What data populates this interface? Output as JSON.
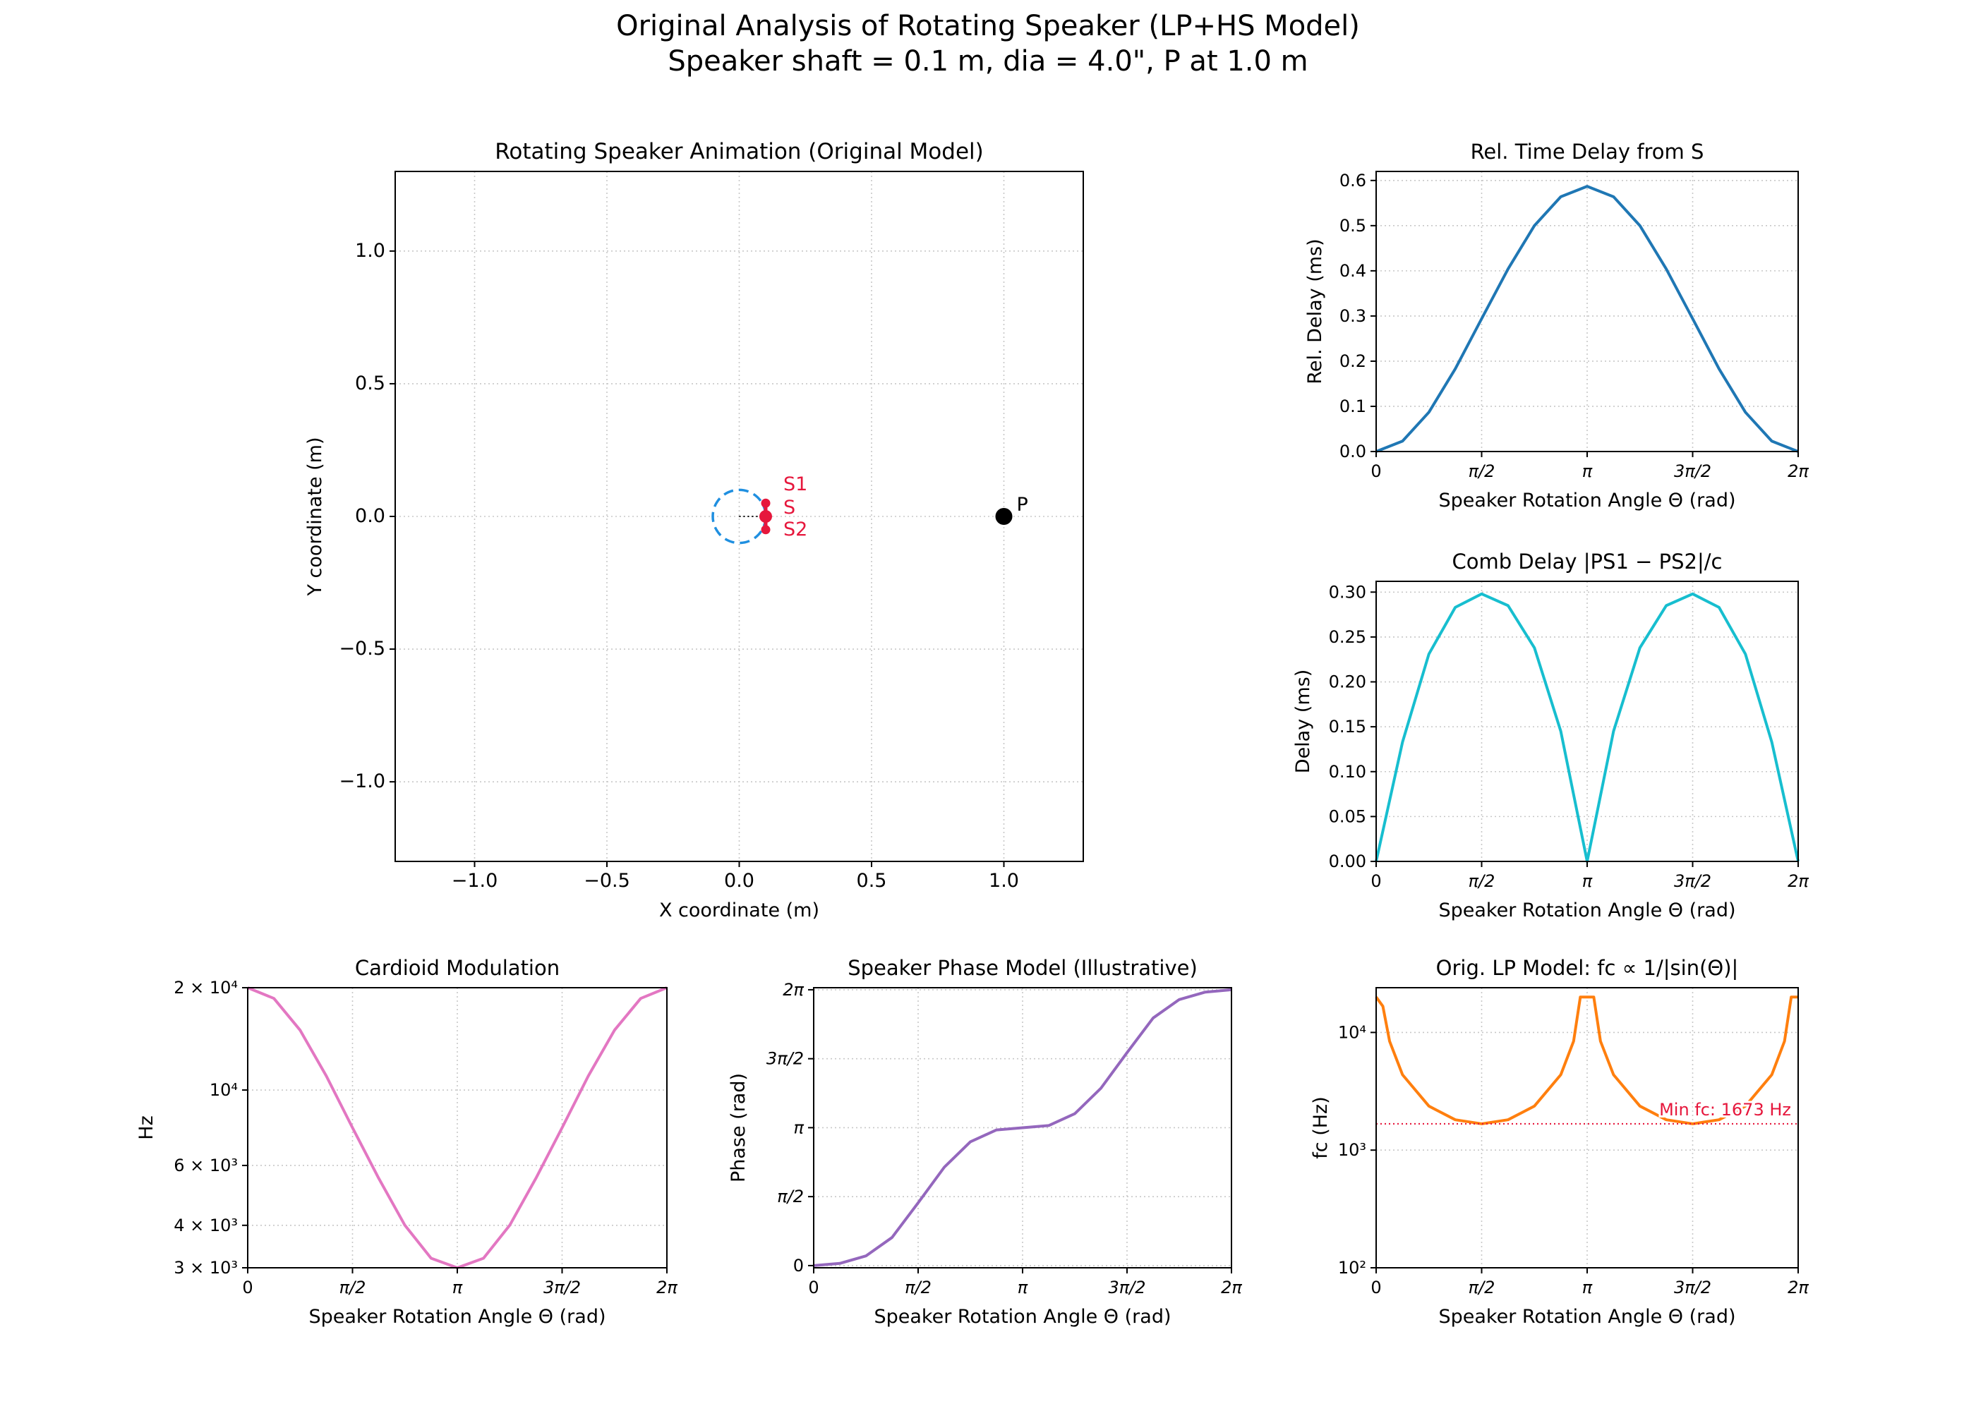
{
  "figure": {
    "title_line1": "Original Analysis of Rotating Speaker (LP+HS Model)",
    "title_line2": "Speaker shaft = 0.1 m, dia = 4.0\", P at 1.0 m"
  },
  "colors": {
    "blue": "#1f77b4",
    "cyan": "#17becf",
    "pink": "#e377c2",
    "purple": "#9467bd",
    "orange": "#ff7f0e",
    "red": "#e6173c",
    "dashed_circle": "#1f8fe0"
  },
  "chart_data": [
    {
      "id": "animation",
      "type": "scatter",
      "title": "Rotating Speaker Animation (Original Model)",
      "xlabel": "X coordinate (m)",
      "ylabel": "Y coordinate (m)",
      "xlim": [
        -1.3,
        1.3
      ],
      "ylim": [
        -1.3,
        1.3
      ],
      "xticks": [
        -1.0,
        -0.5,
        0.0,
        0.5,
        1.0
      ],
      "xtick_labels": [
        "−1.0",
        "−0.5",
        "0.0",
        "0.5",
        "1.0"
      ],
      "yticks": [
        -1.0,
        -0.5,
        0.0,
        0.5,
        1.0
      ],
      "ytick_labels": [
        "−1.0",
        "−0.5",
        "0.0",
        "0.5",
        "1.0"
      ],
      "grid": true,
      "shaft_circle_radius": 0.1,
      "points": [
        {
          "name": "S1",
          "x": 0.1,
          "y": 0.05
        },
        {
          "name": "S",
          "x": 0.1,
          "y": 0.0
        },
        {
          "name": "S2",
          "x": 0.1,
          "y": -0.05
        },
        {
          "name": "P",
          "x": 1.0,
          "y": 0.0
        }
      ]
    },
    {
      "id": "rel_delay",
      "type": "line",
      "title": "Rel. Time Delay from S",
      "xlabel": "Speaker Rotation Angle Θ (rad)",
      "ylabel": "Rel. Delay (ms)",
      "x": [
        0,
        0.3927,
        0.7854,
        1.1781,
        1.5708,
        1.9635,
        2.3562,
        2.7489,
        3.1416,
        3.5343,
        3.927,
        4.3197,
        4.7124,
        5.1051,
        5.4978,
        5.8905,
        6.2832
      ],
      "y": [
        0.0,
        0.023,
        0.087,
        0.183,
        0.294,
        0.404,
        0.5,
        0.564,
        0.587,
        0.564,
        0.5,
        0.404,
        0.294,
        0.183,
        0.087,
        0.023,
        0.0
      ],
      "xlim": [
        0,
        6.2832
      ],
      "ylim": [
        0,
        0.62
      ],
      "xtick_labels": [
        "0",
        "π/2",
        "π",
        "3π/2",
        "2π"
      ],
      "yticks": [
        0.0,
        0.1,
        0.2,
        0.3,
        0.4,
        0.5,
        0.6
      ],
      "ytick_labels": [
        "0.0",
        "0.1",
        "0.2",
        "0.3",
        "0.4",
        "0.5",
        "0.6"
      ],
      "grid": true
    },
    {
      "id": "comb_delay",
      "type": "line",
      "title": "Comb Delay |PS1 − PS2|/c",
      "xlabel": "Speaker Rotation Angle Θ (rad)",
      "ylabel": "Delay (ms)",
      "x": [
        0,
        0.3927,
        0.7854,
        1.1781,
        1.5708,
        1.9635,
        2.3562,
        2.7489,
        3.1416,
        3.5343,
        3.927,
        4.3197,
        4.7124,
        5.1051,
        5.4978,
        5.8905,
        6.2832
      ],
      "y": [
        0.0,
        0.133,
        0.231,
        0.283,
        0.298,
        0.285,
        0.238,
        0.145,
        0.0,
        0.145,
        0.238,
        0.285,
        0.298,
        0.283,
        0.231,
        0.133,
        0.0
      ],
      "xlim": [
        0,
        6.2832
      ],
      "ylim": [
        0,
        0.312
      ],
      "xtick_labels": [
        "0",
        "π/2",
        "π",
        "3π/2",
        "2π"
      ],
      "yticks": [
        0.0,
        0.05,
        0.1,
        0.15,
        0.2,
        0.25,
        0.3
      ],
      "ytick_labels": [
        "0.00",
        "0.05",
        "0.10",
        "0.15",
        "0.20",
        "0.25",
        "0.30"
      ],
      "grid": true
    },
    {
      "id": "cardioid",
      "type": "line",
      "title": "Cardioid Modulation",
      "xlabel": "Speaker Rotation Angle Θ (rad)",
      "ylabel": "Hz",
      "yscale": "log",
      "x": [
        0,
        0.3927,
        0.7854,
        1.1781,
        1.5708,
        1.9635,
        2.3562,
        2.7489,
        3.1416,
        3.5343,
        3.927,
        4.3197,
        4.7124,
        5.1051,
        5.4978,
        5.8905,
        6.2832
      ],
      "y": [
        20000,
        18600,
        15000,
        11000,
        7746,
        5500,
        4000,
        3200,
        3000,
        3200,
        4000,
        5500,
        7746,
        11000,
        15000,
        18600,
        20000
      ],
      "xlim": [
        0,
        6.2832
      ],
      "ylim": [
        3000,
        20000
      ],
      "xtick_labels": [
        "0",
        "π/2",
        "π",
        "3π/2",
        "2π"
      ],
      "yticks": [
        3000,
        4000,
        6000,
        10000,
        20000
      ],
      "ytick_labels": [
        "3 × 10³",
        "4 × 10³",
        "6 × 10³",
        "10⁴",
        "2 × 10⁴"
      ],
      "grid": true
    },
    {
      "id": "phase",
      "type": "line",
      "title": "Speaker Phase Model (Illustrative)",
      "xlabel": "Speaker Rotation Angle Θ (rad)",
      "ylabel": "Phase (rad)",
      "x": [
        0,
        0.3927,
        0.7854,
        1.1781,
        1.5708,
        1.9635,
        2.3562,
        2.7489,
        3.1416,
        3.5343,
        3.927,
        4.3197,
        4.7124,
        5.1051,
        5.4978,
        5.8905,
        6.2832
      ],
      "y": [
        0.0,
        0.05,
        0.22,
        0.64,
        1.43,
        2.24,
        2.82,
        3.09,
        3.14,
        3.19,
        3.46,
        4.04,
        4.85,
        5.64,
        6.06,
        6.23,
        6.2832
      ],
      "xlim": [
        0,
        6.2832
      ],
      "ylim": [
        -0.05,
        6.33
      ],
      "xtick_labels": [
        "0",
        "π/2",
        "π",
        "3π/2",
        "2π"
      ],
      "yticks": [
        0,
        1.5708,
        3.1416,
        4.7124,
        6.2832
      ],
      "ytick_labels": [
        "0",
        "π/2",
        "π",
        "3π/2",
        "2π"
      ],
      "grid": true
    },
    {
      "id": "lp_model",
      "type": "line",
      "title": "Orig. LP Model: fc ∝ 1/|sin(Θ)|",
      "xlabel": "Speaker Rotation Angle Θ (rad)",
      "ylabel": "fc (Hz)",
      "yscale": "log",
      "x": [
        0,
        0.1,
        0.2,
        0.3927,
        0.7854,
        1.1781,
        1.5708,
        1.9635,
        2.3562,
        2.7489,
        2.94,
        3.04,
        3.1416,
        3.24,
        3.34,
        3.5343,
        3.927,
        4.3197,
        4.7124,
        5.1051,
        5.4978,
        5.8905,
        6.08,
        6.18,
        6.2832
      ],
      "y": [
        20000,
        16700,
        8430,
        4370,
        2366,
        1811,
        1673,
        1811,
        2366,
        4370,
        8430,
        20000,
        20000,
        20000,
        8430,
        4370,
        2366,
        1811,
        1673,
        1811,
        2366,
        4370,
        8430,
        20000,
        20000
      ],
      "xlim": [
        0,
        6.2832
      ],
      "ylim": [
        100,
        24000
      ],
      "xtick_labels": [
        "0",
        "π/2",
        "π",
        "3π/2",
        "2π"
      ],
      "yticks": [
        100,
        1000,
        10000
      ],
      "ytick_labels": [
        "10²",
        "10³",
        "10⁴"
      ],
      "grid": true,
      "hline": 1673,
      "annotation": "Min fc: 1673 Hz"
    }
  ]
}
